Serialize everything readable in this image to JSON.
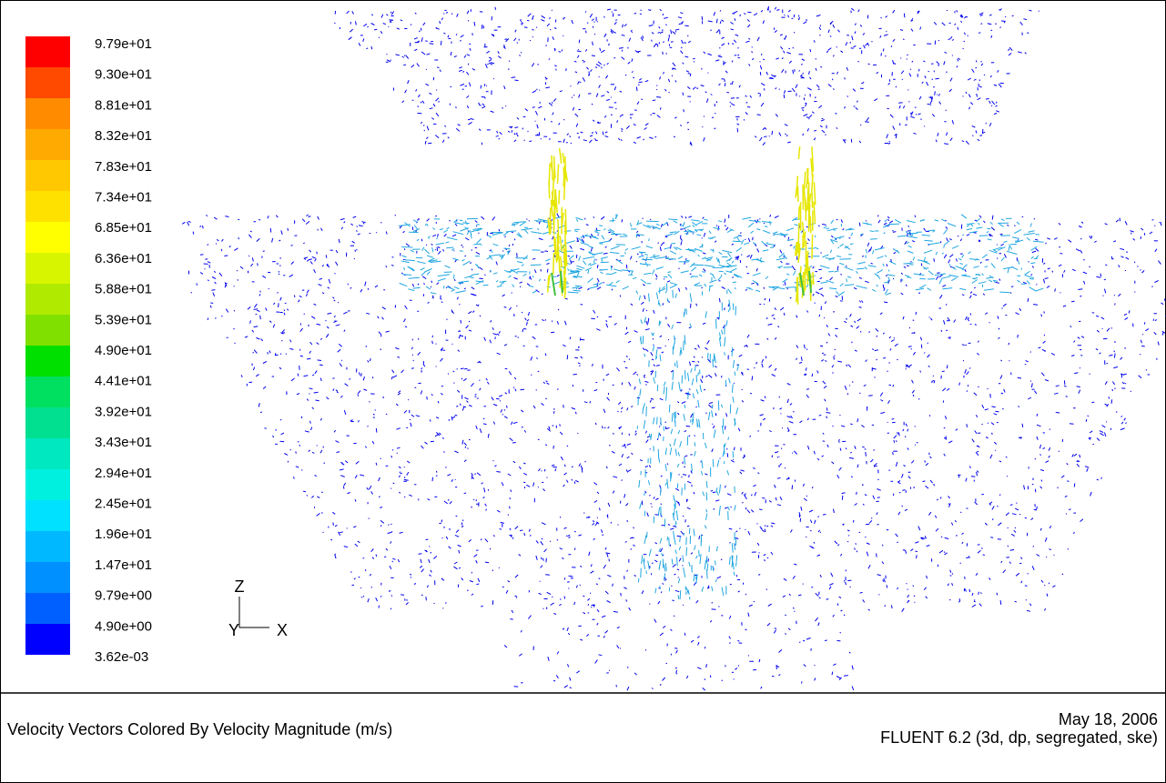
{
  "colorbar": {
    "labels": [
      "9.79e+01",
      "9.30e+01",
      "8.81e+01",
      "8.32e+01",
      "7.83e+01",
      "7.34e+01",
      "6.85e+01",
      "6.36e+01",
      "5.88e+01",
      "5.39e+01",
      "4.90e+01",
      "4.41e+01",
      "3.92e+01",
      "3.43e+01",
      "2.94e+01",
      "2.45e+01",
      "1.96e+01",
      "1.47e+01",
      "9.79e+00",
      "4.90e+00",
      "3.62e-03"
    ],
    "colors": [
      "#ff0000",
      "#ff4a00",
      "#ff8c00",
      "#ffaa00",
      "#ffc800",
      "#ffe100",
      "#ffff00",
      "#d8f500",
      "#b0ea00",
      "#80e000",
      "#00e000",
      "#00e060",
      "#00e090",
      "#00e8c0",
      "#00f0e0",
      "#00e0ff",
      "#00b8ff",
      "#0090ff",
      "#0060ff",
      "#0000ff"
    ]
  },
  "axes": {
    "z": "Z",
    "y": "Y",
    "x": "X"
  },
  "footer": {
    "title": "Velocity Vectors Colored By Velocity Magnitude (m/s)",
    "date": "May 18, 2006",
    "software": "FLUENT 6.2 (3d, dp, segregated, ske)"
  }
}
